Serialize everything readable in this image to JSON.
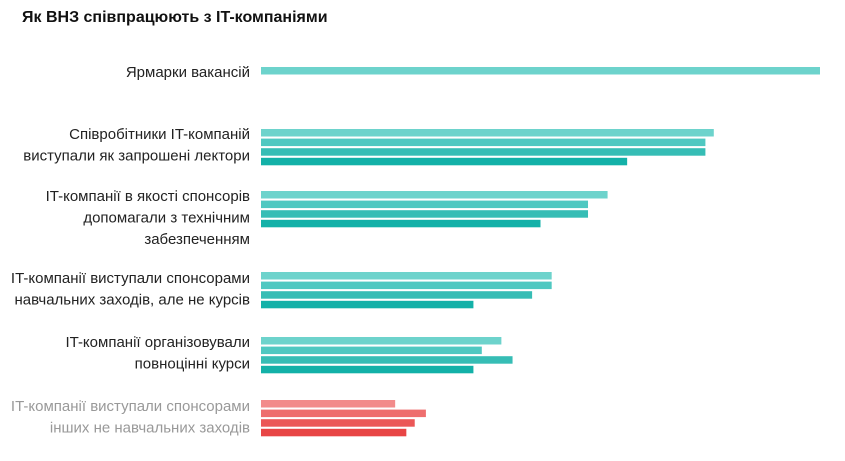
{
  "chart_data": {
    "type": "bar",
    "orientation": "horizontal",
    "title": "Як ВНЗ співпрацюють з IT-компаніями",
    "xlim": [
      0,
      100
    ],
    "grid": false,
    "legend": "none",
    "colors": {
      "teal": [
        "#6dd3cc",
        "#4fc8c1",
        "#36bdb5",
        "#13b1a8"
      ],
      "red": [
        "#f28b8b",
        "#ee6e6e",
        "#eb5757",
        "#e84545"
      ]
    },
    "categories": [
      {
        "lines": [
          "Ярмарки вакансій"
        ],
        "color_group": "teal",
        "label_color": "#222222",
        "values": [
          100
        ]
      },
      {
        "lines": [
          "Співробітники IT-компаній",
          "виступали як запрошені лектори"
        ],
        "color_group": "teal",
        "label_color": "#222222",
        "values": [
          81,
          79.5,
          79.5,
          65.5
        ]
      },
      {
        "lines": [
          "IT-компанії в якості спонсорів",
          "допомагали з технічним",
          "забезпеченням"
        ],
        "color_group": "teal",
        "label_color": "#222222",
        "values": [
          62,
          58.5,
          58.5,
          50
        ]
      },
      {
        "lines": [
          "IT-компанії виступали спонсорами",
          "навчальних заходів, але не курсів"
        ],
        "color_group": "teal",
        "label_color": "#222222",
        "values": [
          52,
          52,
          48.5,
          38
        ]
      },
      {
        "lines": [
          "IT-компанії організовували",
          "повноцінні курси"
        ],
        "color_group": "teal",
        "label_color": "#222222",
        "values": [
          43,
          39.5,
          45,
          38
        ]
      },
      {
        "lines": [
          "IT-компанії виступали спонсорами",
          "інших не навчальних заходів"
        ],
        "color_group": "red",
        "label_color": "#999999",
        "values": [
          24,
          29.5,
          27.5,
          26
        ]
      }
    ]
  }
}
